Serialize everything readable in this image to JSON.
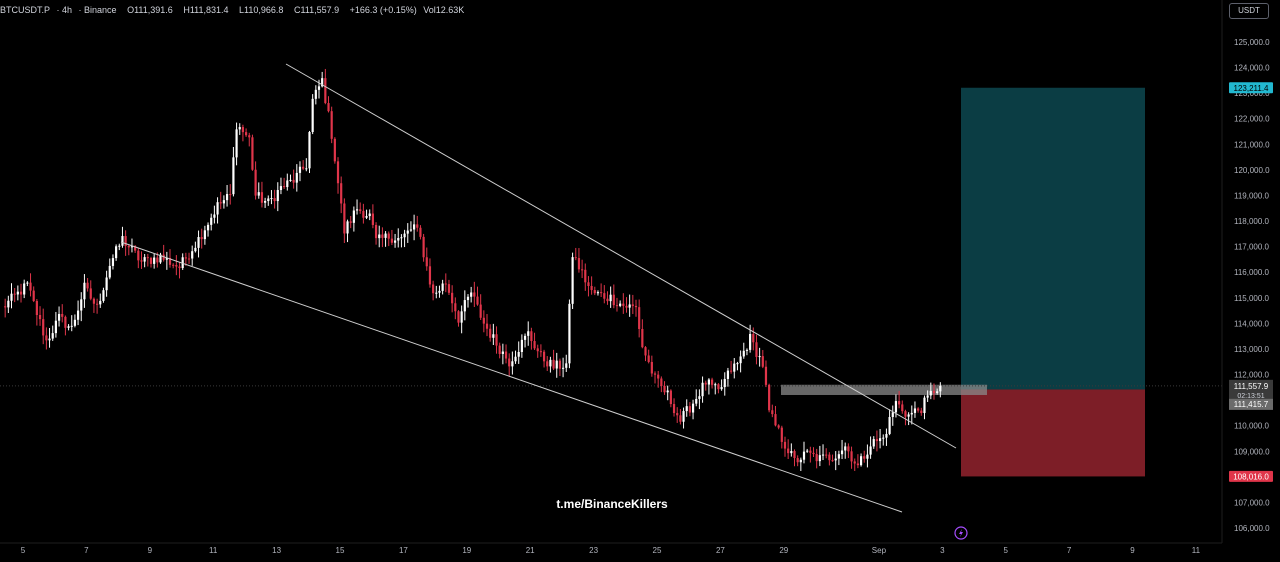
{
  "header": {
    "symbol": "BTCUSDT.P",
    "timeframe": "4h",
    "exchange": "Binance",
    "o": "111,391.6",
    "h": "111,831.4",
    "l": "110,966.8",
    "c": "111,557.9",
    "change": "+166.3 (+0.15%)",
    "vol": "12.63K",
    "currency_button": "USDT"
  },
  "watermark": "t.me/BinanceKillers",
  "badges": {
    "target": "123,211.4",
    "last_price": "111,557.9",
    "countdown": "02:13:51",
    "entry": "111,415.7",
    "stop": "108,016.0"
  },
  "colors": {
    "background": "#000000",
    "up": "#ffffff",
    "down": "#e0354a",
    "profit_zone": "#0b3d44",
    "loss_zone": "#7d1e27",
    "target_badge": "#22b8d0",
    "stop_badge": "#e0354a",
    "trendline": "#cfcfcf"
  },
  "chart_data": {
    "type": "candlestick",
    "x_tick_labels": [
      "5",
      "7",
      "9",
      "11",
      "13",
      "15",
      "17",
      "19",
      "21",
      "23",
      "25",
      "27",
      "29",
      "Sep",
      "3",
      "5",
      "7",
      "9",
      "11"
    ],
    "y_tick_labels": [
      "106,000.0",
      "107,000.0",
      "108,000.0",
      "109,000.0",
      "110,000.0",
      "111,000.0",
      "112,000.0",
      "113,000.0",
      "114,000.0",
      "115,000.0",
      "116,000.0",
      "117,000.0",
      "118,000.0",
      "119,000.0",
      "120,000.0",
      "121,000.0",
      "122,000.0",
      "123,000.0",
      "124,000.0",
      "125,000.0"
    ],
    "ylim": [
      105700,
      125500
    ],
    "timeframe": "4h",
    "candles_note": "approximate OHLC path, 4h candles from ~Aug 4 to Sep 3",
    "path_anchors": [
      [
        0,
        114600
      ],
      [
        8,
        115500
      ],
      [
        14,
        113300
      ],
      [
        18,
        114200
      ],
      [
        22,
        113800
      ],
      [
        26,
        115400
      ],
      [
        30,
        114600
      ],
      [
        34,
        116300
      ],
      [
        38,
        117300
      ],
      [
        44,
        116400
      ],
      [
        50,
        116600
      ],
      [
        56,
        116200
      ],
      [
        62,
        117300
      ],
      [
        68,
        118600
      ],
      [
        72,
        119000
      ],
      [
        74,
        121800
      ],
      [
        78,
        121200
      ],
      [
        80,
        119000
      ],
      [
        84,
        118700
      ],
      [
        88,
        119300
      ],
      [
        92,
        119600
      ],
      [
        96,
        120200
      ],
      [
        98,
        122700
      ],
      [
        101,
        123500
      ],
      [
        104,
        121400
      ],
      [
        108,
        117600
      ],
      [
        112,
        118500
      ],
      [
        116,
        118200
      ],
      [
        118,
        117200
      ],
      [
        122,
        117400
      ],
      [
        126,
        117300
      ],
      [
        130,
        117800
      ],
      [
        132,
        117300
      ],
      [
        136,
        115100
      ],
      [
        140,
        115600
      ],
      [
        144,
        114200
      ],
      [
        148,
        115200
      ],
      [
        152,
        114000
      ],
      [
        156,
        113200
      ],
      [
        160,
        112500
      ],
      [
        166,
        113600
      ],
      [
        170,
        112700
      ],
      [
        174,
        112300
      ],
      [
        178,
        112400
      ],
      [
        180,
        116700
      ],
      [
        186,
        115200
      ],
      [
        192,
        115000
      ],
      [
        196,
        114700
      ],
      [
        200,
        114600
      ],
      [
        202,
        113100
      ],
      [
        206,
        111800
      ],
      [
        210,
        111200
      ],
      [
        214,
        110200
      ],
      [
        218,
        110900
      ],
      [
        222,
        111700
      ],
      [
        226,
        111300
      ],
      [
        230,
        112200
      ],
      [
        232,
        112400
      ],
      [
        236,
        113400
      ],
      [
        240,
        112400
      ],
      [
        242,
        110500
      ],
      [
        246,
        109500
      ],
      [
        250,
        108600
      ],
      [
        254,
        108900
      ],
      [
        258,
        108700
      ],
      [
        262,
        108800
      ],
      [
        266,
        109200
      ],
      [
        270,
        108400
      ],
      [
        274,
        109300
      ],
      [
        278,
        109500
      ],
      [
        282,
        110900
      ],
      [
        286,
        110400
      ],
      [
        290,
        110700
      ],
      [
        294,
        111400
      ],
      [
        296,
        111558
      ]
    ],
    "price_scale_marks": {
      "target": 123211.4,
      "last_price": 111557.9,
      "entry": 111415.7,
      "stop": 108016.0
    },
    "position_tool": {
      "type": "long",
      "entry": 111415.7,
      "target": 123211.4,
      "stop": 108016.0
    },
    "trendlines": [
      {
        "name": "upper-channel-line",
        "from": {
          "x": "Aug 14",
          "y": 124300
        },
        "to": {
          "x": "Sep 2",
          "y": 109000
        }
      },
      {
        "name": "lower-channel-line",
        "from": {
          "x": "Aug 8",
          "y": 117100
        },
        "to": {
          "x": "Sep 1",
          "y": 106800
        }
      }
    ],
    "grid": false,
    "legend": "none"
  }
}
